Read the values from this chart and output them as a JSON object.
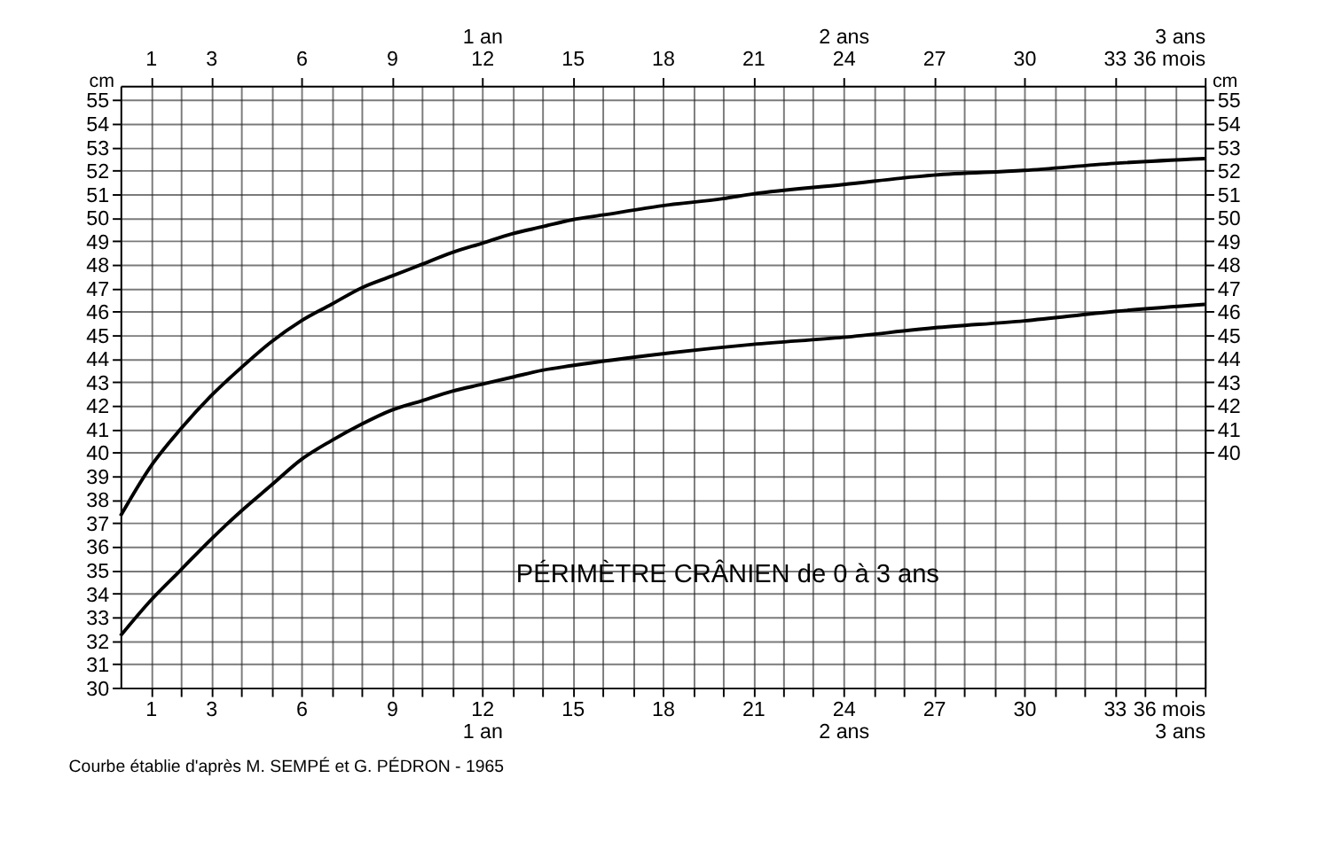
{
  "chart_data": {
    "type": "line",
    "title": "PÉRIMÈTRE CRÂNIEN de 0 à 3 ans",
    "ylabel": "cm",
    "y2label": "cm",
    "annotations": [
      "Courbe établie d'après M. SEMPÉ et G. PÉDRON - 1965"
    ],
    "xlim": [
      0,
      36
    ],
    "ylim": [
      30,
      55.6
    ],
    "x2lim": [
      0,
      36
    ],
    "y2lim": [
      30,
      55.6
    ],
    "xticks": [
      1,
      {
        "value": 2,
        "label": null
      },
      3,
      {
        "value": 4,
        "label": null
      },
      {
        "value": 5,
        "label": null
      },
      6,
      {
        "value": 7,
        "label": null
      },
      {
        "value": 8,
        "label": null
      },
      9,
      {
        "value": 10,
        "label": null
      },
      {
        "value": 11,
        "label": null
      },
      {
        "value": 12,
        "label": "12\n1 an"
      },
      {
        "value": 13,
        "label": null
      },
      {
        "value": 14,
        "label": null
      },
      15,
      {
        "value": 16,
        "label": null
      },
      {
        "value": 17,
        "label": null
      },
      18,
      {
        "value": 19,
        "label": null
      },
      {
        "value": 20,
        "label": null
      },
      21,
      {
        "value": 22,
        "label": null
      },
      {
        "value": 23,
        "label": null
      },
      {
        "value": 24,
        "label": "24\n2 ans"
      },
      {
        "value": 25,
        "label": null
      },
      {
        "value": 26,
        "label": null
      },
      27,
      {
        "value": 28,
        "label": null
      },
      {
        "value": 29,
        "label": null
      },
      30,
      {
        "value": 31,
        "label": null
      },
      {
        "value": 32,
        "label": null
      },
      33,
      {
        "value": 34,
        "label": null
      },
      {
        "value": 35,
        "label": null
      },
      {
        "value": 36,
        "label": "36 mois\n3 ans"
      }
    ],
    "x2ticks": [
      1,
      3,
      6,
      9,
      {
        "value": 12,
        "label": "1 an\n12"
      },
      15,
      18,
      21,
      {
        "value": 24,
        "label": "2 ans\n24"
      },
      27,
      30,
      33,
      {
        "value": 36,
        "label": "3 ans\n36 mois"
      }
    ],
    "yticks": [
      30,
      31,
      32,
      33,
      34,
      35,
      36,
      37,
      38,
      39,
      40,
      41,
      42,
      43,
      44,
      45,
      46,
      47,
      48,
      49,
      50,
      51,
      52,
      53,
      54,
      55
    ],
    "y2ticks": [
      40,
      41,
      42,
      43,
      44,
      45,
      46,
      47,
      48,
      49,
      50,
      51,
      52,
      53,
      54,
      55
    ],
    "grid": true,
    "legend": false,
    "marker": "none",
    "line_style": "solid",
    "series": [
      {
        "color": "#000000",
        "x": [
          0,
          1,
          2,
          3,
          4,
          5,
          6,
          7,
          8,
          9,
          10,
          11,
          12,
          13,
          14,
          15,
          16,
          18,
          20,
          21,
          24,
          27,
          30,
          33,
          36
        ],
        "values": [
          37.3,
          39.4,
          41,
          42.4,
          43.6,
          44.7,
          45.6,
          46.3,
          47,
          47.5,
          48,
          48.5,
          48.9,
          49.3,
          49.6,
          49.9,
          50.1,
          50.5,
          50.8,
          51,
          51.4,
          51.8,
          52,
          52.3,
          52.5
        ]
      },
      {
        "color": "#000000",
        "x": [
          0,
          1,
          2,
          3,
          4,
          5,
          6,
          7,
          8,
          9,
          10,
          11,
          12,
          13,
          14,
          15,
          18,
          21,
          24,
          27,
          30,
          33,
          36
        ],
        "values": [
          32.2,
          33.7,
          35,
          36.3,
          37.5,
          38.6,
          39.7,
          40.5,
          41.2,
          41.8,
          42.2,
          42.6,
          42.9,
          43.2,
          43.5,
          43.7,
          44.2,
          44.6,
          44.9,
          45.3,
          45.6,
          46,
          46.3
        ]
      }
    ]
  }
}
